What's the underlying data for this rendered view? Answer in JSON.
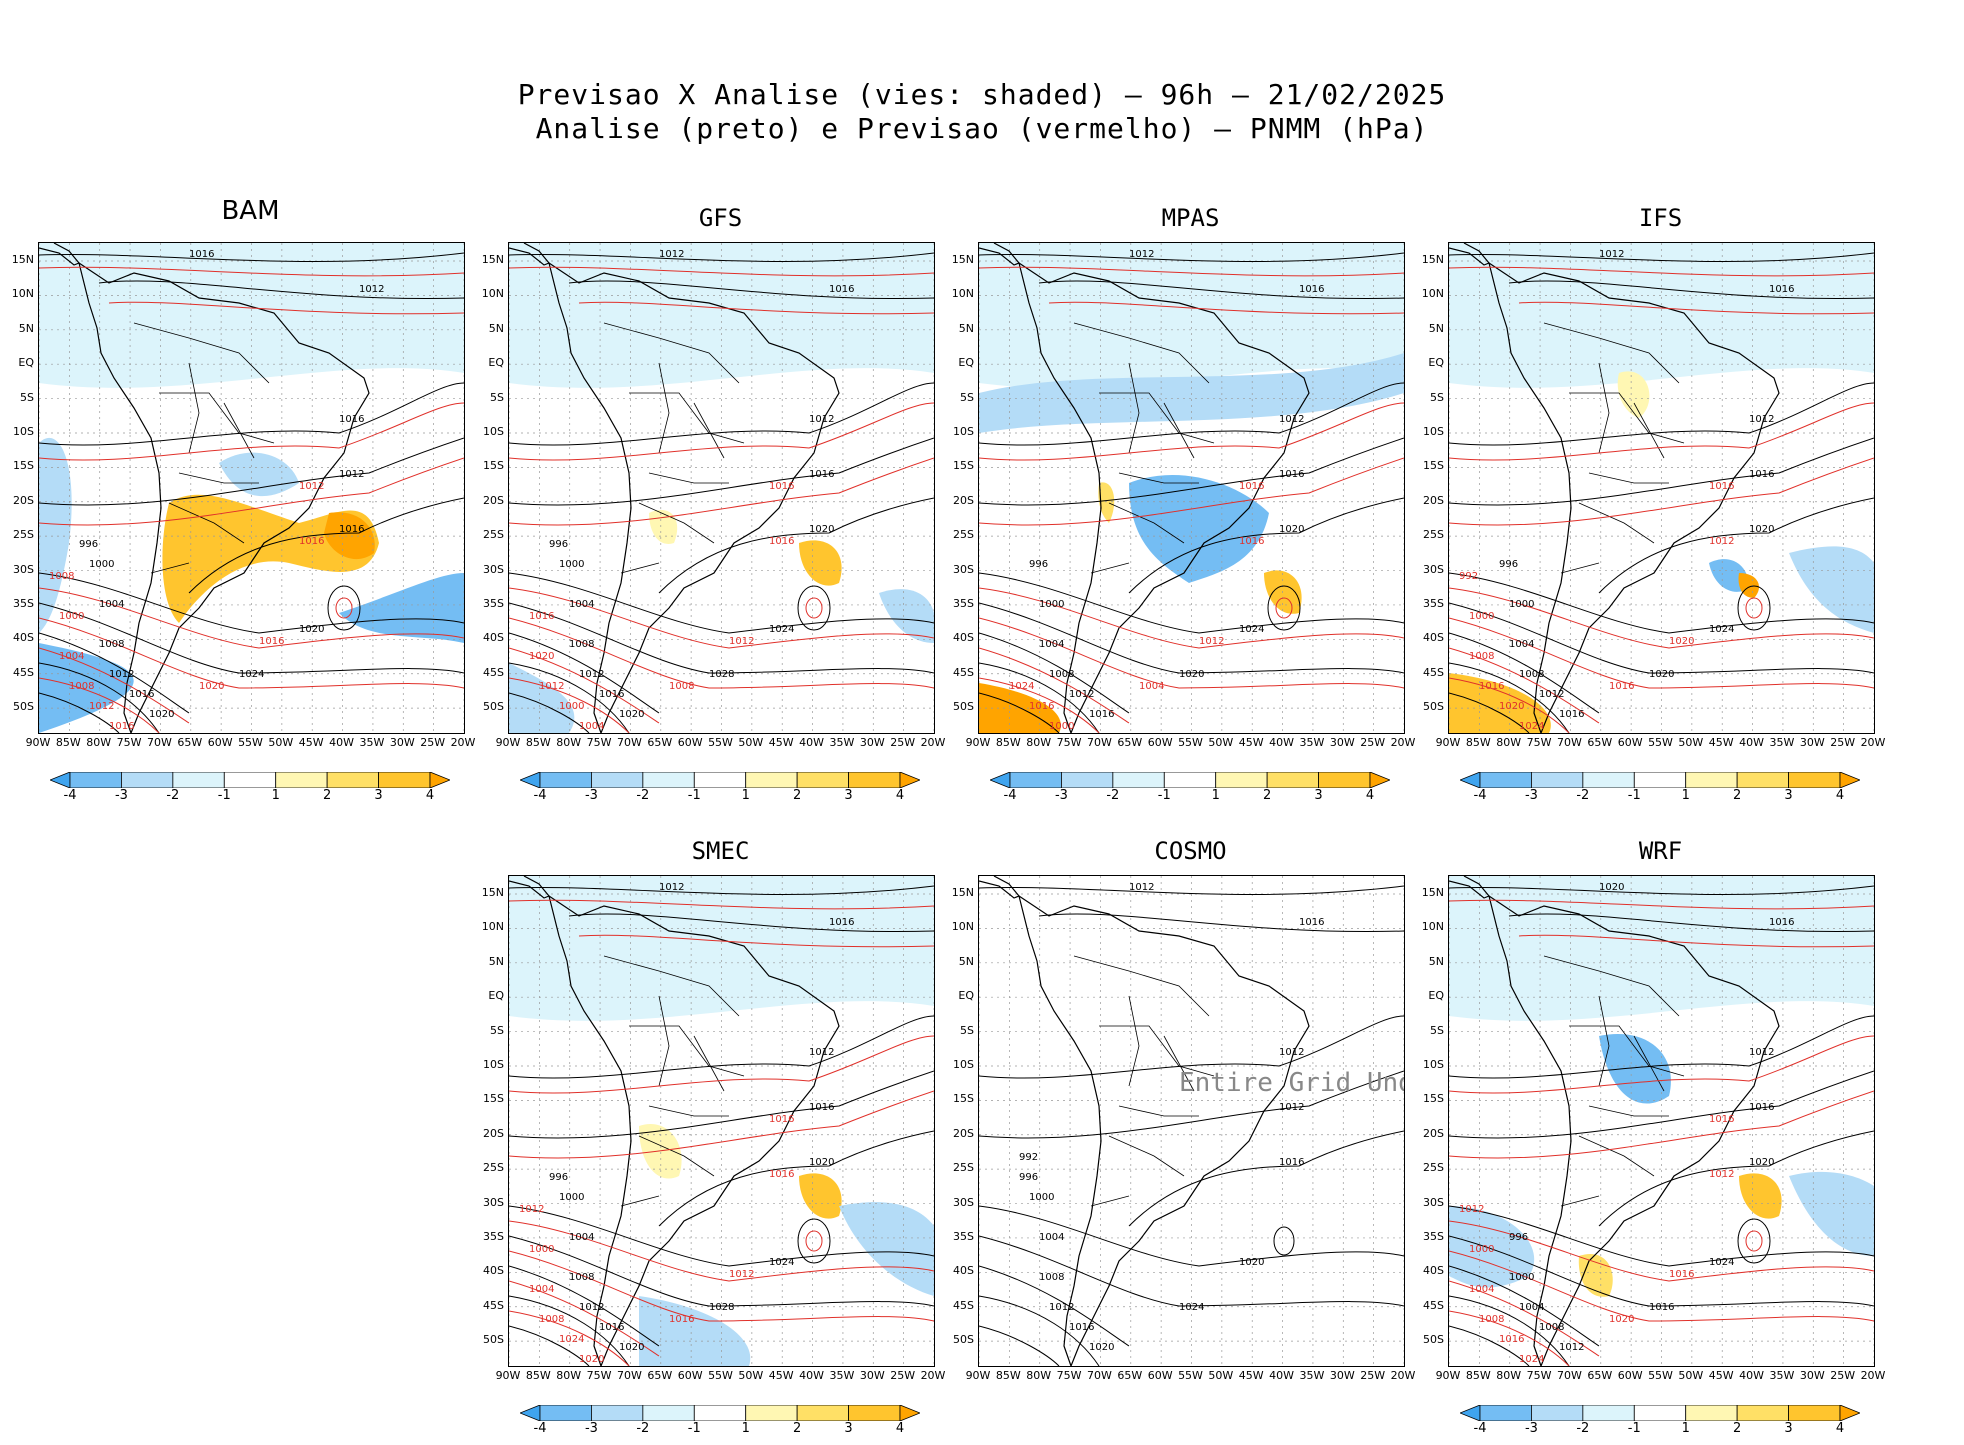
{
  "title_line1": "Previsao X Analise (vies: shaded) — 96h — 21/02/2025",
  "title_line2": "Analise (preto) e Previsao (vermelho) — PNMM (hPa)",
  "lat_labels": [
    "15N",
    "10N",
    "5N",
    "EQ",
    "5S",
    "10S",
    "15S",
    "20S",
    "25S",
    "30S",
    "35S",
    "40S",
    "45S",
    "50S"
  ],
  "lon_labels": [
    "90W",
    "85W",
    "80W",
    "75W",
    "70W",
    "65W",
    "60W",
    "55W",
    "50W",
    "45W",
    "40W",
    "35W",
    "30W",
    "25W",
    "20W"
  ],
  "colorbar": {
    "labels": [
      "-4",
      "-3",
      "-2",
      "-1",
      "1",
      "2",
      "3",
      "4"
    ],
    "colors": [
      "#3fa4ef",
      "#74bdf3",
      "#b4dcf7",
      "#dcf4fb",
      "#ffffff",
      "#fff7b3",
      "#ffe066",
      "#ffc52e",
      "#ffa400"
    ]
  },
  "colors": {
    "analysis": "#000000",
    "forecast": "#e0302a"
  },
  "panels": [
    {
      "id": "bam",
      "title": "BAM",
      "colorbar": true,
      "bias": true,
      "contours": {
        "analysis": [
          "1016",
          "1012",
          "1016",
          "1012",
          "1016",
          "1020",
          "1024",
          "1020",
          "1016",
          "1012",
          "1008",
          "1004",
          "1000",
          "996"
        ],
        "forecast": [
          "1012",
          "1016",
          "1016",
          "1020",
          "1016",
          "1012",
          "1008",
          "1004",
          "1000",
          "1008"
        ]
      }
    },
    {
      "id": "gfs",
      "title": "GFS",
      "colorbar": true,
      "bias": true,
      "contours": {
        "analysis": [
          "1012",
          "1016",
          "1012",
          "1016",
          "1020",
          "1024",
          "1028",
          "1020",
          "1016",
          "1012",
          "1008",
          "1004",
          "1000",
          "996"
        ],
        "forecast": [
          "1016",
          "1016",
          "1012",
          "1008",
          "1004",
          "1000",
          "1012",
          "1020",
          "1016"
        ]
      }
    },
    {
      "id": "mpas",
      "title": "MPAS",
      "colorbar": true,
      "bias": true,
      "contours": {
        "analysis": [
          "1012",
          "1016",
          "1012",
          "1016",
          "1020",
          "1024",
          "1020",
          "1016",
          "1012",
          "1008",
          "1004",
          "1000",
          "996"
        ],
        "forecast": [
          "1016",
          "1016",
          "1012",
          "1004",
          "1000",
          "1016",
          "1024"
        ]
      }
    },
    {
      "id": "ifs",
      "title": "IFS",
      "colorbar": true,
      "bias": true,
      "contours": {
        "analysis": [
          "1012",
          "1016",
          "1012",
          "1016",
          "1020",
          "1024",
          "1020",
          "1016",
          "1012",
          "1008",
          "1004",
          "1000",
          "996"
        ],
        "forecast": [
          "1016",
          "1012",
          "1020",
          "1016",
          "1024",
          "1020",
          "1016",
          "1008",
          "1000",
          "992"
        ]
      }
    },
    {
      "id": "smec",
      "title": "SMEC",
      "colorbar": true,
      "bias": true,
      "contours": {
        "analysis": [
          "1012",
          "1016",
          "1012",
          "1016",
          "1020",
          "1024",
          "1028",
          "1020",
          "1016",
          "1012",
          "1008",
          "1004",
          "1000",
          "996"
        ],
        "forecast": [
          "1016",
          "1016",
          "1012",
          "1016",
          "1020",
          "1024",
          "1008",
          "1004",
          "1000",
          "1012"
        ]
      }
    },
    {
      "id": "cosmo",
      "title": "COSMO",
      "colorbar": false,
      "bias": false,
      "undef_text": "Entire Grid Undef",
      "contours": {
        "analysis": [
          "1012",
          "1016",
          "1012",
          "1012",
          "1016",
          "1020",
          "1024",
          "1020",
          "1016",
          "1012",
          "1008",
          "1004",
          "1000",
          "996",
          "992"
        ],
        "forecast": []
      }
    },
    {
      "id": "wrf",
      "title": "WRF",
      "colorbar": true,
      "bias": true,
      "contours": {
        "analysis": [
          "1020",
          "1016",
          "1012",
          "1016",
          "1020",
          "1024",
          "1016",
          "1012",
          "1008",
          "1004",
          "1000",
          "996"
        ],
        "forecast": [
          "1016",
          "1012",
          "1016",
          "1020",
          "1024",
          "1016",
          "1008",
          "1004",
          "1000",
          "1012"
        ]
      }
    }
  ]
}
